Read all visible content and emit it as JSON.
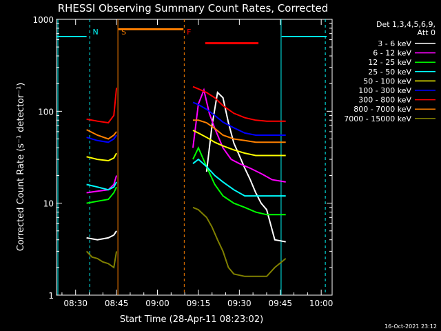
{
  "chart_data": {
    "type": "line",
    "title": "RHESSI Observing Summary Count Rates, Corrected",
    "xlabel": "Start Time (28-Apr-11 08:23:02)",
    "ylabel": "Corrected Count Rate (s⁻¹ detector⁻¹)",
    "yscale": "log",
    "ylim": [
      1,
      1000
    ],
    "xlim_minutes_after_0800": [
      23.0,
      124.0
    ],
    "x_ticks": [
      {
        "m": 30,
        "label": "08:30"
      },
      {
        "m": 45,
        "label": "08:45"
      },
      {
        "m": 60,
        "label": "09:00"
      },
      {
        "m": 75,
        "label": "09:15"
      },
      {
        "m": 90,
        "label": "09:30"
      },
      {
        "m": 105,
        "label": "09:45"
      },
      {
        "m": 120,
        "label": "10:00"
      }
    ],
    "y_ticks": [
      {
        "v": 1,
        "label": "1"
      },
      {
        "v": 10,
        "label": "10"
      },
      {
        "v": 100,
        "label": "100"
      },
      {
        "v": 1000,
        "label": "1000"
      }
    ],
    "legend_position": "right",
    "legend_header": [
      "Det 1,3,4,5,6,9,",
      "Att 0"
    ],
    "series": [
      {
        "name": "3 - 6 keV",
        "color": "#ffffff",
        "points": [
          [
            34,
            4.2
          ],
          [
            38,
            4.0
          ],
          [
            42,
            4.2
          ],
          [
            44,
            4.5
          ],
          [
            45,
            5.0
          ],
          [
            78,
            22
          ],
          [
            80,
            70
          ],
          [
            82,
            160
          ],
          [
            84,
            140
          ],
          [
            86,
            75
          ],
          [
            88,
            45
          ],
          [
            90,
            33
          ],
          [
            92,
            24
          ],
          [
            94,
            18
          ],
          [
            96,
            13
          ],
          [
            98,
            10
          ],
          [
            100,
            8.5
          ],
          [
            103,
            4.0
          ],
          [
            107,
            3.8
          ]
        ]
      },
      {
        "name": "6 - 12 keV",
        "color": "#ff00ff",
        "points": [
          [
            34,
            13
          ],
          [
            38,
            13.5
          ],
          [
            42,
            14
          ],
          [
            44,
            16
          ],
          [
            45,
            20
          ],
          [
            73,
            40
          ],
          [
            75,
            120
          ],
          [
            77,
            170
          ],
          [
            79,
            95
          ],
          [
            81,
            65
          ],
          [
            84,
            40
          ],
          [
            87,
            30
          ],
          [
            90,
            27
          ],
          [
            94,
            24
          ],
          [
            98,
            21
          ],
          [
            102,
            18
          ],
          [
            107,
            17
          ]
        ]
      },
      {
        "name": "12 - 25 keV",
        "color": "#00ff00",
        "points": [
          [
            34,
            10
          ],
          [
            38,
            10.5
          ],
          [
            42,
            11
          ],
          [
            44,
            13
          ],
          [
            45,
            15
          ],
          [
            73,
            30
          ],
          [
            75,
            40
          ],
          [
            78,
            25
          ],
          [
            81,
            16
          ],
          [
            84,
            12
          ],
          [
            88,
            10
          ],
          [
            92,
            9
          ],
          [
            96,
            8
          ],
          [
            100,
            7.5
          ],
          [
            104,
            7.5
          ],
          [
            107,
            7.5
          ]
        ]
      },
      {
        "name": "25 - 50 keV",
        "color": "#00ffff",
        "points": [
          [
            34,
            16
          ],
          [
            38,
            15
          ],
          [
            42,
            14
          ],
          [
            44,
            15
          ],
          [
            45,
            17
          ],
          [
            73,
            27
          ],
          [
            75,
            30
          ],
          [
            78,
            25
          ],
          [
            81,
            20
          ],
          [
            84,
            17
          ],
          [
            88,
            14
          ],
          [
            92,
            12
          ],
          [
            96,
            12
          ],
          [
            100,
            12
          ],
          [
            104,
            12
          ],
          [
            107,
            12
          ]
        ]
      },
      {
        "name": "50 - 100 keV",
        "color": "#ffff00",
        "points": [
          [
            34,
            32
          ],
          [
            38,
            30
          ],
          [
            42,
            29
          ],
          [
            44,
            31
          ],
          [
            45,
            35
          ],
          [
            73,
            62
          ],
          [
            75,
            58
          ],
          [
            78,
            52
          ],
          [
            81,
            46
          ],
          [
            84,
            42
          ],
          [
            88,
            38
          ],
          [
            92,
            35
          ],
          [
            96,
            33
          ],
          [
            100,
            33
          ],
          [
            104,
            33
          ],
          [
            107,
            33
          ]
        ]
      },
      {
        "name": "100 - 300 keV",
        "color": "#0000ff",
        "points": [
          [
            34,
            52
          ],
          [
            38,
            48
          ],
          [
            42,
            46
          ],
          [
            44,
            50
          ],
          [
            45,
            55
          ],
          [
            73,
            125
          ],
          [
            75,
            118
          ],
          [
            78,
            105
          ],
          [
            81,
            90
          ],
          [
            84,
            76
          ],
          [
            88,
            66
          ],
          [
            92,
            58
          ],
          [
            96,
            55
          ],
          [
            100,
            55
          ],
          [
            104,
            55
          ],
          [
            107,
            55
          ]
        ]
      },
      {
        "name": "300 - 800 keV",
        "color": "#ff0000",
        "points": [
          [
            34,
            82
          ],
          [
            38,
            78
          ],
          [
            42,
            75
          ],
          [
            44,
            90
          ],
          [
            45,
            180
          ],
          [
            73,
            185
          ],
          [
            75,
            175
          ],
          [
            78,
            160
          ],
          [
            81,
            140
          ],
          [
            84,
            115
          ],
          [
            88,
            95
          ],
          [
            92,
            85
          ],
          [
            96,
            80
          ],
          [
            100,
            78
          ],
          [
            104,
            78
          ],
          [
            107,
            78
          ]
        ]
      },
      {
        "name": "800 - 7000 keV",
        "color": "#ff8000",
        "points": [
          [
            34,
            63
          ],
          [
            38,
            55
          ],
          [
            42,
            50
          ],
          [
            44,
            55
          ],
          [
            45,
            60
          ],
          [
            73,
            80
          ],
          [
            75,
            80
          ],
          [
            78,
            75
          ],
          [
            81,
            65
          ],
          [
            84,
            55
          ],
          [
            88,
            50
          ],
          [
            92,
            48
          ],
          [
            96,
            46
          ],
          [
            100,
            46
          ],
          [
            104,
            46
          ],
          [
            107,
            46
          ]
        ]
      },
      {
        "name": "7000 - 15000 keV",
        "color": "#808000",
        "points": [
          [
            34,
            3.0
          ],
          [
            36,
            2.6
          ],
          [
            38,
            2.5
          ],
          [
            40,
            2.3
          ],
          [
            42,
            2.2
          ],
          [
            44,
            2.0
          ],
          [
            45,
            3.0
          ],
          [
            73,
            9
          ],
          [
            75,
            8.5
          ],
          [
            78,
            7
          ],
          [
            80,
            5.5
          ],
          [
            82,
            4
          ],
          [
            84,
            3
          ],
          [
            86,
            2
          ],
          [
            88,
            1.7
          ],
          [
            92,
            1.6
          ],
          [
            96,
            1.6
          ],
          [
            100,
            1.6
          ],
          [
            103,
            2
          ],
          [
            107,
            2.5
          ]
        ]
      }
    ],
    "annotations": [
      {
        "label": "N",
        "m": 35.5,
        "color": "#00ffff"
      },
      {
        "label": "S",
        "m": 46.0,
        "color": "#ff8000"
      },
      {
        "label": "F",
        "m": 70.0,
        "color": "#ff0000"
      }
    ],
    "footer_timestamp": "16-Oct-2021 23:12"
  }
}
